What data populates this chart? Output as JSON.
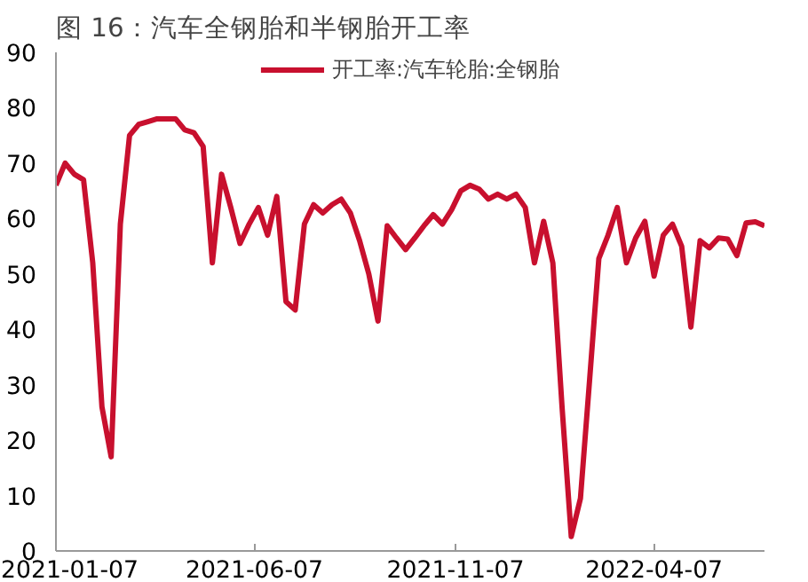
{
  "chart_data": {
    "type": "line",
    "title": "图 16：汽车全钢胎和半钢胎开工率",
    "x": [
      "2021-01-07",
      "2021-01-14",
      "2021-01-21",
      "2021-01-28",
      "2021-02-04",
      "2021-02-11",
      "2021-02-18",
      "2021-02-25",
      "2021-03-04",
      "2021-03-11",
      "2021-03-18",
      "2021-03-25",
      "2021-04-01",
      "2021-04-08",
      "2021-04-15",
      "2021-04-22",
      "2021-04-29",
      "2021-05-06",
      "2021-05-13",
      "2021-05-20",
      "2021-05-27",
      "2021-06-03",
      "2021-06-10",
      "2021-06-17",
      "2021-06-24",
      "2021-07-01",
      "2021-07-08",
      "2021-07-15",
      "2021-07-22",
      "2021-07-29",
      "2021-08-05",
      "2021-08-12",
      "2021-08-19",
      "2021-08-26",
      "2021-09-02",
      "2021-09-09",
      "2021-09-16",
      "2021-09-23",
      "2021-09-30",
      "2021-10-07",
      "2021-10-14",
      "2021-10-21",
      "2021-10-28",
      "2021-11-04",
      "2021-11-11",
      "2021-11-18",
      "2021-11-25",
      "2021-12-02",
      "2021-12-09",
      "2021-12-16",
      "2021-12-23",
      "2021-12-30",
      "2022-01-06",
      "2022-01-13",
      "2022-01-20",
      "2022-01-27",
      "2022-02-03",
      "2022-02-10",
      "2022-02-17",
      "2022-02-24",
      "2022-03-03",
      "2022-03-10",
      "2022-03-17",
      "2022-03-24",
      "2022-03-31",
      "2022-04-07",
      "2022-04-14",
      "2022-04-21",
      "2022-04-28",
      "2022-05-05",
      "2022-05-12",
      "2022-05-19",
      "2022-05-26",
      "2022-06-02",
      "2022-06-09",
      "2022-06-16",
      "2022-06-23",
      "2022-06-30"
    ],
    "series": [
      {
        "name": "开工率:汽车轮胎:全钢胎",
        "color": "#c8102e",
        "values": [
          66,
          70,
          68,
          67,
          52,
          26,
          17,
          59,
          75,
          77,
          77.5,
          78,
          78,
          78,
          76,
          75.5,
          73,
          52,
          68,
          62,
          55.5,
          59,
          62,
          57,
          64,
          45,
          43.5,
          59,
          62.5,
          61,
          62.5,
          63.5,
          61,
          56,
          50,
          41.5,
          58.7,
          56.5,
          54.4,
          56.5,
          58.7,
          60.7,
          59,
          61.6,
          65,
          66,
          65.3,
          63.5,
          64.4,
          63.5,
          64.4,
          62,
          52,
          59.5,
          52,
          26,
          2.6,
          9.5,
          31,
          52.8,
          57,
          62,
          52,
          56.5,
          59.5,
          49.6,
          57,
          59,
          55,
          40.4,
          56,
          54.7,
          56.5,
          56.3,
          53.3,
          59.2,
          59.4,
          58.7
        ]
      }
    ],
    "xlim": [
      "2021-01-07",
      "2022-06-30"
    ],
    "xticks": [
      "2021-01-07",
      "2021-06-07",
      "2021-11-07",
      "2022-04-07"
    ],
    "ylim": [
      0,
      90
    ],
    "yticks": [
      0,
      10,
      20,
      30,
      40,
      50,
      60,
      70,
      80,
      90
    ],
    "grid": false,
    "legend": "top",
    "line_style": "solid",
    "marker": "none"
  }
}
